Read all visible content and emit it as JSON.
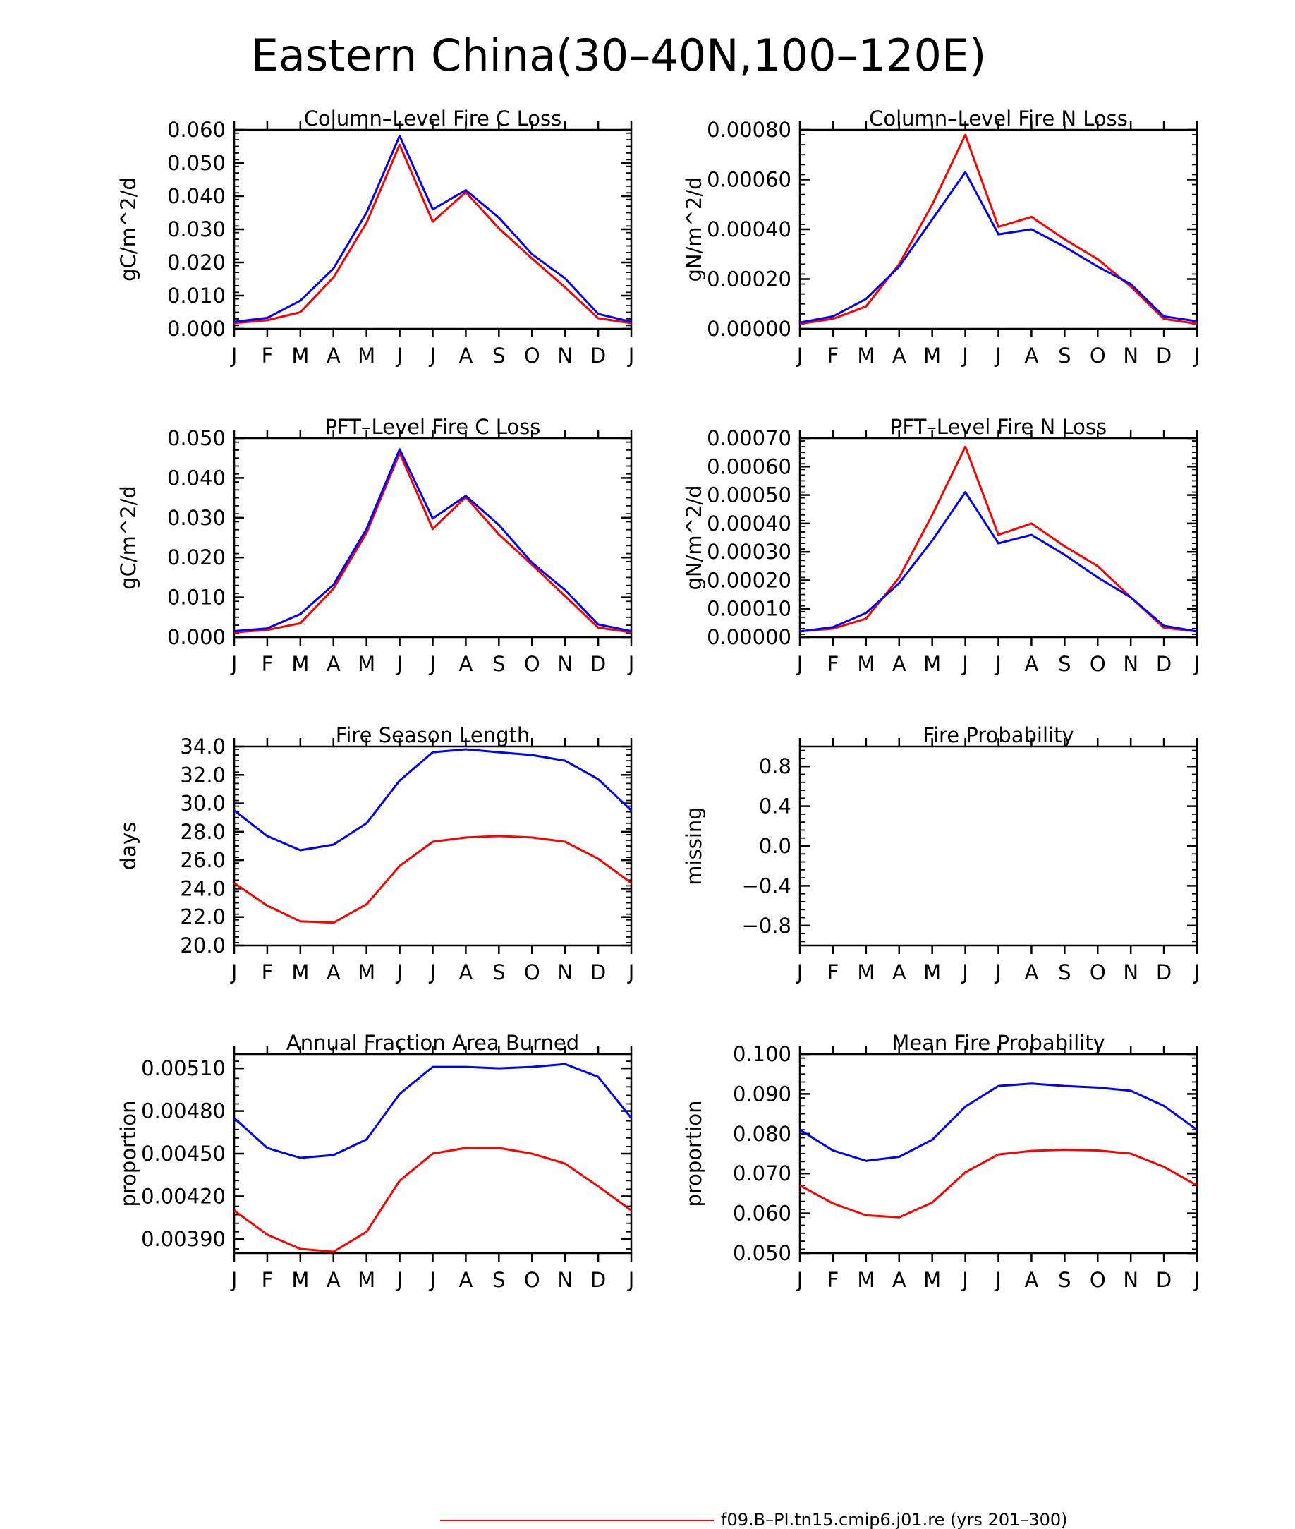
{
  "title": "Eastern China(30–40N,100–120E)",
  "colors": {
    "red_series": "#ff0000",
    "blue_series": "#0000ff",
    "axis": "#000000"
  },
  "legend": {
    "red_label": "f09.B–PI.tn15.cmip6.j01.re (yrs 201–300)"
  },
  "chart_data": [
    {
      "type": "line",
      "title": "Column–Level Fire C Loss",
      "ylabel": "gC/m^2/d",
      "x": [
        "J",
        "F",
        "M",
        "A",
        "M",
        "J",
        "J",
        "A",
        "S",
        "O",
        "N",
        "D",
        "J"
      ],
      "ylim": [
        0,
        0.06
      ],
      "yticks": [
        "0.000",
        "0.010",
        "0.020",
        "0.030",
        "0.040",
        "0.050",
        "0.060"
      ],
      "series": [
        {
          "color": "#ff0000",
          "values": [
            0.0017,
            0.0026,
            0.005,
            0.0155,
            0.032,
            0.0555,
            0.0323,
            0.0412,
            0.0303,
            0.0212,
            0.0125,
            0.0032,
            0.0017
          ]
        },
        {
          "color": "#0000ff",
          "values": [
            0.0021,
            0.0033,
            0.0085,
            0.0182,
            0.035,
            0.0582,
            0.036,
            0.0418,
            0.0335,
            0.0225,
            0.0152,
            0.0045,
            0.0021
          ]
        }
      ]
    },
    {
      "type": "line",
      "title": "Column–Level Fire N Loss",
      "ylabel": "gN/m^2/d",
      "x": [
        "J",
        "F",
        "M",
        "A",
        "M",
        "J",
        "J",
        "A",
        "S",
        "O",
        "N",
        "D",
        "J"
      ],
      "ylim": [
        0,
        0.0008
      ],
      "yticks": [
        "0.00000",
        "0.00020",
        "0.00040",
        "0.00060",
        "0.00080"
      ],
      "series": [
        {
          "color": "#ff0000",
          "values": [
            2e-05,
            4e-05,
            9e-05,
            0.00026,
            0.0005,
            0.00078,
            0.00041,
            0.00045,
            0.00036,
            0.00028,
            0.00017,
            4e-05,
            2e-05
          ]
        },
        {
          "color": "#0000ff",
          "values": [
            2.5e-05,
            5e-05,
            0.00012,
            0.00025,
            0.00044,
            0.00063,
            0.00038,
            0.0004,
            0.00033,
            0.00025,
            0.00018,
            5e-05,
            3e-05
          ]
        }
      ]
    },
    {
      "type": "line",
      "title": "PFT–Level Fire C Loss",
      "ylabel": "gC/m^2/d",
      "x": [
        "J",
        "F",
        "M",
        "A",
        "M",
        "J",
        "J",
        "A",
        "S",
        "O",
        "N",
        "D",
        "J"
      ],
      "ylim": [
        0,
        0.05
      ],
      "yticks": [
        "0.000",
        "0.010",
        "0.020",
        "0.030",
        "0.040",
        "0.050"
      ],
      "series": [
        {
          "color": "#ff0000",
          "values": [
            0.0012,
            0.0018,
            0.0035,
            0.0122,
            0.0262,
            0.0463,
            0.0272,
            0.0352,
            0.0258,
            0.0182,
            0.0103,
            0.0024,
            0.0012
          ]
        },
        {
          "color": "#0000ff",
          "values": [
            0.0015,
            0.0022,
            0.0058,
            0.0132,
            0.0272,
            0.0472,
            0.0298,
            0.0355,
            0.0282,
            0.0187,
            0.0118,
            0.0032,
            0.0015
          ]
        }
      ]
    },
    {
      "type": "line",
      "title": "PFT–Level Fire N Loss",
      "ylabel": "gN/m^2/d",
      "x": [
        "J",
        "F",
        "M",
        "A",
        "M",
        "J",
        "J",
        "A",
        "S",
        "O",
        "N",
        "D",
        "J"
      ],
      "ylim": [
        0,
        0.0007
      ],
      "yticks": [
        "0.00000",
        "0.00010",
        "0.00020",
        "0.00030",
        "0.00040",
        "0.00050",
        "0.00060",
        "0.00070"
      ],
      "series": [
        {
          "color": "#ff0000",
          "values": [
            2e-05,
            3e-05,
            6.5e-05,
            0.00021,
            0.00043,
            0.00067,
            0.00036,
            0.0004,
            0.00032,
            0.00025,
            0.00014,
            3.3e-05,
            2e-05
          ]
        },
        {
          "color": "#0000ff",
          "values": [
            2e-05,
            3.5e-05,
            8.5e-05,
            0.00019,
            0.00034,
            0.00051,
            0.00033,
            0.00036,
            0.00029,
            0.00021,
            0.00014,
            4e-05,
            2e-05
          ]
        }
      ]
    },
    {
      "type": "line",
      "title": "Fire Season Length",
      "ylabel": "days",
      "x": [
        "J",
        "F",
        "M",
        "A",
        "M",
        "J",
        "J",
        "A",
        "S",
        "O",
        "N",
        "D",
        "J"
      ],
      "ylim": [
        20,
        34
      ],
      "yticks": [
        "20.0",
        "22.0",
        "24.0",
        "26.0",
        "28.0",
        "30.0",
        "32.0",
        "34.0"
      ],
      "series": [
        {
          "color": "#ff0000",
          "values": [
            24.4,
            22.8,
            21.7,
            21.6,
            22.9,
            25.6,
            27.3,
            27.6,
            27.7,
            27.6,
            27.3,
            26.1,
            24.4
          ]
        },
        {
          "color": "#0000ff",
          "values": [
            29.5,
            27.7,
            26.7,
            27.1,
            28.6,
            31.6,
            33.6,
            33.8,
            33.6,
            33.4,
            33.0,
            31.7,
            29.5
          ]
        }
      ]
    },
    {
      "type": "line",
      "title": "Fire Probability",
      "ylabel": "missing",
      "x": [
        "J",
        "F",
        "M",
        "A",
        "M",
        "J",
        "J",
        "A",
        "S",
        "O",
        "N",
        "D",
        "J"
      ],
      "ylim": [
        -1,
        1
      ],
      "yticks": [
        "−0.8",
        "−0.4",
        "0.0",
        "0.4",
        "0.8"
      ],
      "series": []
    },
    {
      "type": "line",
      "title": "Annual Fraction Area Burned",
      "ylabel": "proportion",
      "x": [
        "J",
        "F",
        "M",
        "A",
        "M",
        "J",
        "J",
        "A",
        "S",
        "O",
        "N",
        "D",
        "J"
      ],
      "ylim": [
        0.0038,
        0.0052
      ],
      "yticks": [
        "0.00390",
        "0.00420",
        "0.00450",
        "0.00480",
        "0.00510"
      ],
      "series": [
        {
          "color": "#ff0000",
          "values": [
            0.0041,
            0.00393,
            0.00383,
            0.00381,
            0.00395,
            0.00431,
            0.0045,
            0.00454,
            0.00454,
            0.0045,
            0.00443,
            0.00427,
            0.0041
          ]
        },
        {
          "color": "#0000ff",
          "values": [
            0.00475,
            0.00454,
            0.00447,
            0.00449,
            0.0046,
            0.00492,
            0.00511,
            0.00511,
            0.0051,
            0.00511,
            0.00513,
            0.00504,
            0.00475
          ]
        }
      ]
    },
    {
      "type": "line",
      "title": "Mean Fire Probability",
      "ylabel": "proportion",
      "x": [
        "J",
        "F",
        "M",
        "A",
        "M",
        "J",
        "J",
        "A",
        "S",
        "O",
        "N",
        "D",
        "J"
      ],
      "ylim": [
        0.05,
        0.1
      ],
      "yticks": [
        "0.050",
        "0.060",
        "0.070",
        "0.080",
        "0.090",
        "0.100"
      ],
      "series": [
        {
          "color": "#ff0000",
          "values": [
            0.067,
            0.0625,
            0.0595,
            0.059,
            0.0627,
            0.0703,
            0.0748,
            0.0757,
            0.076,
            0.0758,
            0.075,
            0.0717,
            0.067
          ]
        },
        {
          "color": "#0000ff",
          "values": [
            0.081,
            0.0758,
            0.0732,
            0.0742,
            0.0785,
            0.0868,
            0.092,
            0.0926,
            0.092,
            0.0916,
            0.0908,
            0.087,
            0.081
          ]
        }
      ]
    }
  ]
}
